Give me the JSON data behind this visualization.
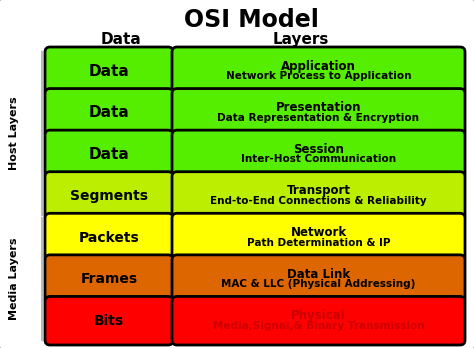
{
  "title": "OSI Model",
  "col_header_left": "Data",
  "col_header_right": "Layers",
  "side_label_top": "Host Layers",
  "side_label_bottom": "Media Layers",
  "layers": [
    {
      "data_unit": "Data",
      "layer_name": "Application",
      "layer_desc": "Network Process to Application",
      "bg_color": "#55ee00",
      "border_color": "#000000",
      "text_color_left": "#000000",
      "text_color_right": "#000000"
    },
    {
      "data_unit": "Data",
      "layer_name": "Presentation",
      "layer_desc": "Data Representation & Encryption",
      "bg_color": "#55ee00",
      "border_color": "#000000",
      "text_color_left": "#000000",
      "text_color_right": "#000000"
    },
    {
      "data_unit": "Data",
      "layer_name": "Session",
      "layer_desc": "Inter-Host Communication",
      "bg_color": "#55ee00",
      "border_color": "#000000",
      "text_color_left": "#000000",
      "text_color_right": "#000000"
    },
    {
      "data_unit": "Segments",
      "layer_name": "Transport",
      "layer_desc": "End-to-End Connections & Reliability",
      "bg_color": "#bbee00",
      "border_color": "#000000",
      "text_color_left": "#000000",
      "text_color_right": "#000000"
    },
    {
      "data_unit": "Packets",
      "layer_name": "Network",
      "layer_desc": "Path Determination & IP",
      "bg_color": "#ffff00",
      "border_color": "#000000",
      "text_color_left": "#000000",
      "text_color_right": "#000000"
    },
    {
      "data_unit": "Frames",
      "layer_name": "Data Link",
      "layer_desc": "MAC & LLC (Physical Addressing)",
      "bg_color": "#dd6600",
      "border_color": "#000000",
      "text_color_left": "#000000",
      "text_color_right": "#000000"
    },
    {
      "data_unit": "Bits",
      "layer_name": "Physical",
      "layer_desc": "Media,Signal,& Binary Transmission",
      "bg_color": "#ff0000",
      "border_color": "#000000",
      "text_color_left": "#000000",
      "text_color_right": "#cc0000"
    }
  ],
  "background_color": "#ffffff",
  "outer_border_color": "#999999",
  "host_layers_count": 4,
  "media_layers_count": 3,
  "fig_width": 4.74,
  "fig_height": 3.48,
  "dpi": 100
}
